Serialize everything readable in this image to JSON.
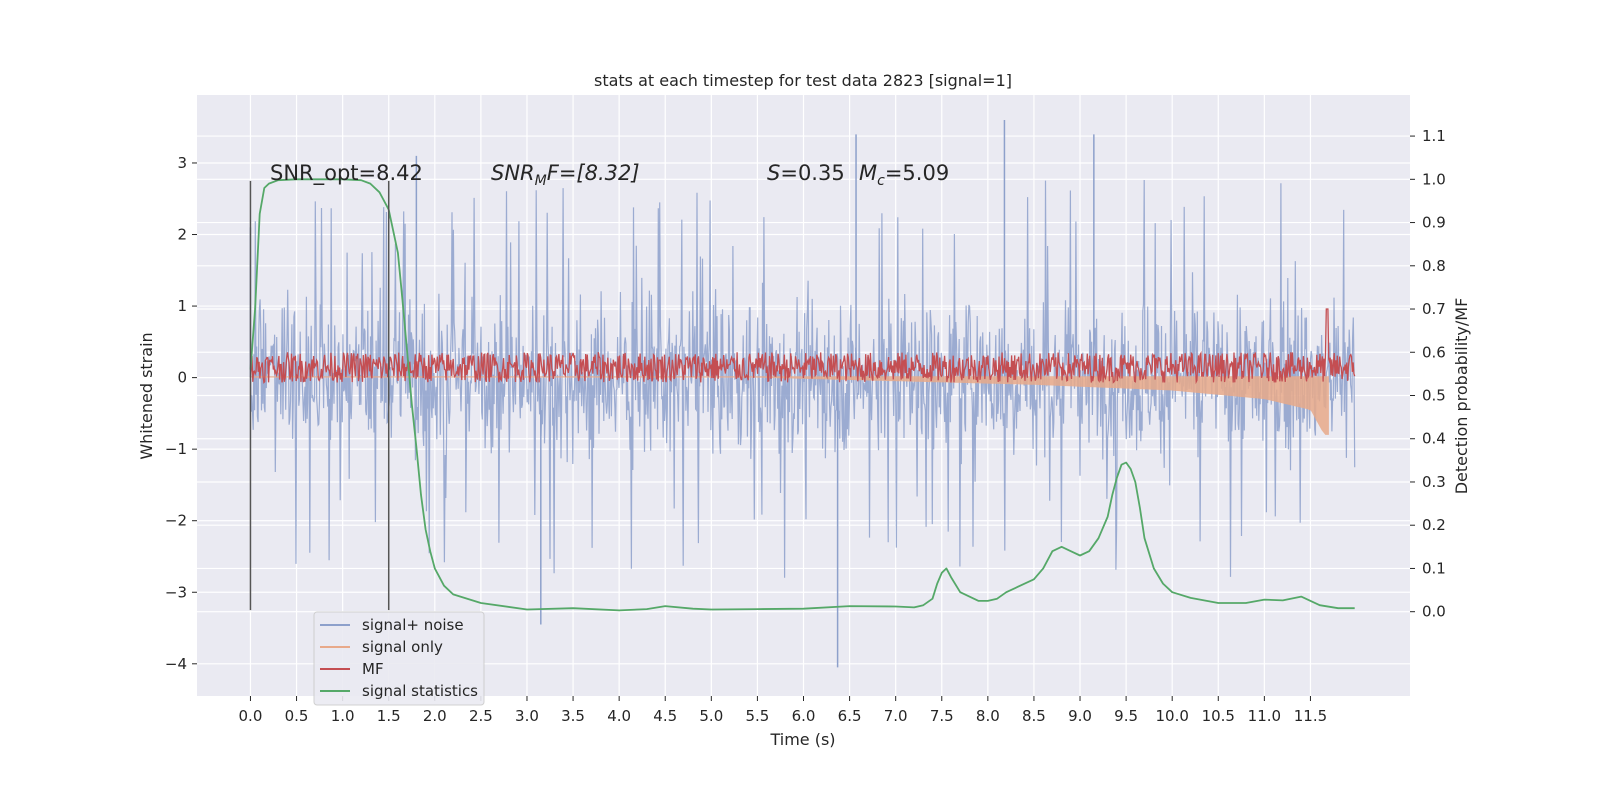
{
  "chart_data": {
    "type": "line",
    "title": "stats at each timestep for test data 2823 [signal=1]",
    "xlabel": "Time (s)",
    "ylabel_left": "Whitened strain",
    "ylabel_right": "Detection probability/MF",
    "xlim": [
      -0.58,
      12.58
    ],
    "ylim_left": [
      -4.45,
      3.95
    ],
    "ylim_right": [
      -0.195,
      1.195
    ],
    "x_ticks": [
      "0.0",
      "0.5",
      "1.0",
      "1.5",
      "2.0",
      "2.5",
      "3.0",
      "3.5",
      "4.0",
      "4.5",
      "5.0",
      "5.5",
      "6.0",
      "6.5",
      "7.0",
      "7.5",
      "8.0",
      "8.5",
      "9.0",
      "9.5",
      "10.0",
      "10.5",
      "11.0",
      "11.5"
    ],
    "y_ticks_left": [
      "3",
      "2",
      "1",
      "0",
      "−1",
      "−2",
      "−3",
      "−4"
    ],
    "y_ticks_right": [
      "1.1",
      "1.0",
      "0.9",
      "0.8",
      "0.7",
      "0.6",
      "0.5",
      "0.4",
      "0.3",
      "0.2",
      "0.1",
      "0.0"
    ],
    "annotations": {
      "snr_opt": "SNR_opt=8.42",
      "snr_mf_label": "SNR",
      "snr_mf_sub": "M",
      "snr_mf_rest": "F=[8.32]",
      "s_label": "S",
      "s_value": "=0.35",
      "mc_label": "M",
      "mc_sub": "c",
      "mc_value": "=5.09"
    },
    "vlines_x": [
      0.0,
      1.5
    ],
    "series": [
      {
        "name": "signal+ noise",
        "color": "#8da0cb",
        "axis": "left",
        "x_range": [
          0.0,
          11.98
        ],
        "band": [
          -1.5,
          1.5
        ],
        "extreme_min": -4.05,
        "extreme_max": 3.6
      },
      {
        "name": "signal only",
        "color": "#e8a98a",
        "axis": "left",
        "x_range": [
          0.0,
          11.7
        ],
        "envelope": [
          [
            5.5,
            0.0
          ],
          [
            7.0,
            -0.05
          ],
          [
            8.5,
            -0.1
          ],
          [
            10.0,
            -0.18
          ],
          [
            11.0,
            -0.3
          ],
          [
            11.5,
            -0.45
          ],
          [
            11.65,
            -0.8
          ]
        ]
      },
      {
        "name": "MF",
        "color": "#c44e52",
        "axis": "right",
        "x_range": [
          0.0,
          11.98
        ],
        "level": 0.565,
        "band": 0.035,
        "peak": [
          11.68,
          0.7
        ]
      },
      {
        "name": "signal statistics",
        "color": "#55a868",
        "axis": "right",
        "x": [
          0.0,
          0.05,
          0.1,
          0.15,
          0.2,
          0.3,
          0.5,
          0.8,
          1.0,
          1.2,
          1.3,
          1.4,
          1.5,
          1.55,
          1.6,
          1.65,
          1.7,
          1.75,
          1.8,
          1.85,
          1.9,
          1.95,
          2.0,
          2.05,
          2.1,
          2.2,
          2.5,
          3.0,
          3.5,
          4.0,
          4.3,
          4.5,
          4.8,
          5.0,
          5.5,
          6.0,
          6.5,
          7.0,
          7.2,
          7.3,
          7.4,
          7.45,
          7.5,
          7.55,
          7.6,
          7.7,
          7.8,
          7.9,
          8.0,
          8.1,
          8.2,
          8.3,
          8.5,
          8.6,
          8.7,
          8.8,
          8.9,
          9.0,
          9.1,
          9.2,
          9.3,
          9.35,
          9.4,
          9.45,
          9.5,
          9.55,
          9.6,
          9.65,
          9.7,
          9.8,
          9.9,
          10.0,
          10.2,
          10.5,
          10.8,
          11.0,
          11.2,
          11.4,
          11.6,
          11.8,
          11.98
        ],
        "y": [
          0.56,
          0.7,
          0.92,
          0.98,
          0.99,
          0.998,
          1.0,
          1.0,
          1.0,
          0.998,
          0.99,
          0.97,
          0.93,
          0.88,
          0.83,
          0.72,
          0.6,
          0.48,
          0.38,
          0.27,
          0.19,
          0.14,
          0.1,
          0.08,
          0.06,
          0.04,
          0.02,
          0.005,
          0.008,
          0.003,
          0.006,
          0.013,
          0.007,
          0.005,
          0.006,
          0.007,
          0.013,
          0.012,
          0.01,
          0.015,
          0.03,
          0.065,
          0.09,
          0.1,
          0.08,
          0.045,
          0.035,
          0.025,
          0.025,
          0.03,
          0.045,
          0.055,
          0.075,
          0.1,
          0.14,
          0.15,
          0.14,
          0.13,
          0.14,
          0.17,
          0.22,
          0.27,
          0.31,
          0.34,
          0.345,
          0.33,
          0.3,
          0.24,
          0.17,
          0.1,
          0.065,
          0.045,
          0.032,
          0.02,
          0.02,
          0.028,
          0.026,
          0.035,
          0.015,
          0.008,
          0.008
        ]
      }
    ],
    "legend_position": "lower left",
    "grid": true
  }
}
